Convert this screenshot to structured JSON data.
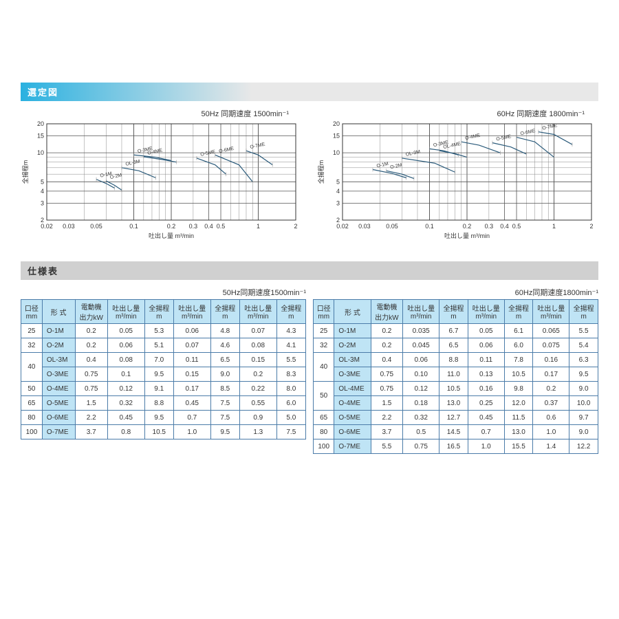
{
  "sections": {
    "chart": "選定図",
    "spec": "仕様表"
  },
  "chart50": {
    "title": "50Hz 同期速度 1500min⁻¹",
    "ylabel": "全揚程  m",
    "xlabel": "吐出し量  m³/min",
    "xlog_ticks": [
      0.02,
      0.03,
      0.05,
      0.1,
      0.2,
      0.3,
      0.4,
      0.5,
      1.0,
      2.0
    ],
    "ylog_ticks": [
      2,
      3,
      4,
      5,
      10,
      15,
      20
    ],
    "curves": [
      {
        "label": "O-1M",
        "pts": [
          [
            0.05,
            5.3
          ],
          [
            0.06,
            4.8
          ],
          [
            0.07,
            4.3
          ]
        ]
      },
      {
        "label": "O-2M",
        "pts": [
          [
            0.06,
            5.1
          ],
          [
            0.07,
            4.6
          ],
          [
            0.08,
            4.1
          ]
        ]
      },
      {
        "label": "OL-3M",
        "pts": [
          [
            0.08,
            7.0
          ],
          [
            0.11,
            6.5
          ],
          [
            0.15,
            5.5
          ]
        ]
      },
      {
        "label": "O-3ME",
        "pts": [
          [
            0.1,
            9.5
          ],
          [
            0.15,
            9.0
          ],
          [
            0.2,
            8.3
          ]
        ]
      },
      {
        "label": "O-4ME",
        "pts": [
          [
            0.12,
            9.1
          ],
          [
            0.17,
            8.5
          ],
          [
            0.22,
            8.0
          ]
        ]
      },
      {
        "label": "O-5ME",
        "pts": [
          [
            0.32,
            8.8
          ],
          [
            0.45,
            7.5
          ],
          [
            0.55,
            6.0
          ]
        ]
      },
      {
        "label": "O-6ME",
        "pts": [
          [
            0.45,
            9.5
          ],
          [
            0.7,
            7.5
          ],
          [
            0.9,
            5.0
          ]
        ]
      },
      {
        "label": "O-7ME",
        "pts": [
          [
            0.8,
            10.5
          ],
          [
            1.0,
            9.5
          ],
          [
            1.3,
            7.5
          ]
        ]
      }
    ]
  },
  "chart60": {
    "title": "60Hz 同期速度 1800min⁻¹",
    "ylabel": "全揚程  m",
    "xlabel": "吐出し量  m³/min",
    "xlog_ticks": [
      0.02,
      0.03,
      0.05,
      0.1,
      0.2,
      0.3,
      0.4,
      0.5,
      1.0,
      2.0
    ],
    "ylog_ticks": [
      2,
      3,
      4,
      5,
      10,
      15,
      20
    ],
    "curves": [
      {
        "label": "O-1M",
        "pts": [
          [
            0.035,
            6.7
          ],
          [
            0.05,
            6.1
          ],
          [
            0.065,
            5.5
          ]
        ]
      },
      {
        "label": "O-2M",
        "pts": [
          [
            0.045,
            6.5
          ],
          [
            0.06,
            6.0
          ],
          [
            0.075,
            5.4
          ]
        ]
      },
      {
        "label": "OL-3M",
        "pts": [
          [
            0.06,
            8.8
          ],
          [
            0.11,
            7.8
          ],
          [
            0.16,
            6.3
          ]
        ]
      },
      {
        "label": "O-3ME",
        "pts": [
          [
            0.1,
            11.0
          ],
          [
            0.13,
            10.5
          ],
          [
            0.17,
            9.5
          ]
        ]
      },
      {
        "label": "OL-4ME",
        "pts": [
          [
            0.12,
            10.5
          ],
          [
            0.16,
            9.8
          ],
          [
            0.2,
            9.0
          ]
        ]
      },
      {
        "label": "O-4ME",
        "pts": [
          [
            0.18,
            13.0
          ],
          [
            0.25,
            12.0
          ],
          [
            0.37,
            10.0
          ]
        ]
      },
      {
        "label": "O-5ME",
        "pts": [
          [
            0.32,
            12.7
          ],
          [
            0.45,
            11.5
          ],
          [
            0.6,
            9.7
          ]
        ]
      },
      {
        "label": "O-6ME",
        "pts": [
          [
            0.5,
            14.5
          ],
          [
            0.7,
            13.0
          ],
          [
            1.0,
            9.0
          ]
        ]
      },
      {
        "label": "O-7ME",
        "pts": [
          [
            0.75,
            16.5
          ],
          [
            1.0,
            15.5
          ],
          [
            1.4,
            12.2
          ]
        ]
      }
    ]
  },
  "table_headers": {
    "dia": "口径\nmm",
    "model": "形 式",
    "power": "電動機\n出力kW",
    "q1": "吐出し量\nm³/min",
    "h1": "全揚程\nm",
    "q2": "吐出し量\nm³/min",
    "h2": "全揚程\nm",
    "q3": "吐出し量\nm³/min",
    "h3": "全揚程\nm"
  },
  "table50": {
    "title": "50Hz同期速度1500min⁻¹",
    "rows": [
      {
        "dia": "25",
        "model": "O-1M",
        "kw": "0.2",
        "q1": "0.05",
        "h1": "5.3",
        "q2": "0.06",
        "h2": "4.8",
        "q3": "0.07",
        "h3": "4.3"
      },
      {
        "dia": "32",
        "model": "O-2M",
        "kw": "0.2",
        "q1": "0.06",
        "h1": "5.1",
        "q2": "0.07",
        "h2": "4.6",
        "q3": "0.08",
        "h3": "4.1"
      },
      {
        "dia": "40",
        "span": 2,
        "model": "OL-3M",
        "kw": "0.4",
        "q1": "0.08",
        "h1": "7.0",
        "q2": "0.11",
        "h2": "6.5",
        "q3": "0.15",
        "h3": "5.5"
      },
      {
        "model": "O-3ME",
        "kw": "0.75",
        "q1": "0.1",
        "h1": "9.5",
        "q2": "0.15",
        "h2": "9.0",
        "q3": "0.2",
        "h3": "8.3"
      },
      {
        "dia": "50",
        "model": "O-4ME",
        "kw": "0.75",
        "q1": "0.12",
        "h1": "9.1",
        "q2": "0.17",
        "h2": "8.5",
        "q3": "0.22",
        "h3": "8.0"
      },
      {
        "dia": "65",
        "model": "O-5ME",
        "kw": "1.5",
        "q1": "0.32",
        "h1": "8.8",
        "q2": "0.45",
        "h2": "7.5",
        "q3": "0.55",
        "h3": "6.0"
      },
      {
        "dia": "80",
        "model": "O-6ME",
        "kw": "2.2",
        "q1": "0.45",
        "h1": "9.5",
        "q2": "0.7",
        "h2": "7.5",
        "q3": "0.9",
        "h3": "5.0"
      },
      {
        "dia": "100",
        "model": "O-7ME",
        "kw": "3.7",
        "q1": "0.8",
        "h1": "10.5",
        "q2": "1.0",
        "h2": "9.5",
        "q3": "1.3",
        "h3": "7.5"
      }
    ]
  },
  "table60": {
    "title": "60Hz同期速度1800min⁻¹",
    "rows": [
      {
        "dia": "25",
        "model": "O-1M",
        "kw": "0.2",
        "q1": "0.035",
        "h1": "6.7",
        "q2": "0.05",
        "h2": "6.1",
        "q3": "0.065",
        "h3": "5.5"
      },
      {
        "dia": "32",
        "model": "O-2M",
        "kw": "0.2",
        "q1": "0.045",
        "h1": "6.5",
        "q2": "0.06",
        "h2": "6.0",
        "q3": "0.075",
        "h3": "5.4"
      },
      {
        "dia": "40",
        "span": 2,
        "model": "OL-3M",
        "kw": "0.4",
        "q1": "0.06",
        "h1": "8.8",
        "q2": "0.11",
        "h2": "7.8",
        "q3": "0.16",
        "h3": "6.3"
      },
      {
        "model": "O-3ME",
        "kw": "0.75",
        "q1": "0.10",
        "h1": "11.0",
        "q2": "0.13",
        "h2": "10.5",
        "q3": "0.17",
        "h3": "9.5"
      },
      {
        "dia": "50",
        "span": 2,
        "model": "OL-4ME",
        "kw": "0.75",
        "q1": "0.12",
        "h1": "10.5",
        "q2": "0.16",
        "h2": "9.8",
        "q3": "0.2",
        "h3": "9.0"
      },
      {
        "model": "O-4ME",
        "kw": "1.5",
        "q1": "0.18",
        "h1": "13.0",
        "q2": "0.25",
        "h2": "12.0",
        "q3": "0.37",
        "h3": "10.0"
      },
      {
        "dia": "65",
        "model": "O-5ME",
        "kw": "2.2",
        "q1": "0.32",
        "h1": "12.7",
        "q2": "0.45",
        "h2": "11.5",
        "q3": "0.6",
        "h3": "9.7"
      },
      {
        "dia": "80",
        "model": "O-6ME",
        "kw": "3.7",
        "q1": "0.5",
        "h1": "14.5",
        "q2": "0.7",
        "h2": "13.0",
        "q3": "1.0",
        "h3": "9.0"
      },
      {
        "dia": "100",
        "model": "O-7ME",
        "kw": "5.5",
        "q1": "0.75",
        "h1": "16.5",
        "q2": "1.0",
        "h2": "15.5",
        "q3": "1.4",
        "h3": "12.2"
      }
    ]
  },
  "colors": {
    "header_bg": "#bfe4f5",
    "border": "#4a7ba8",
    "bar": "#2bb1e0",
    "curve": "#2a5a7a"
  }
}
